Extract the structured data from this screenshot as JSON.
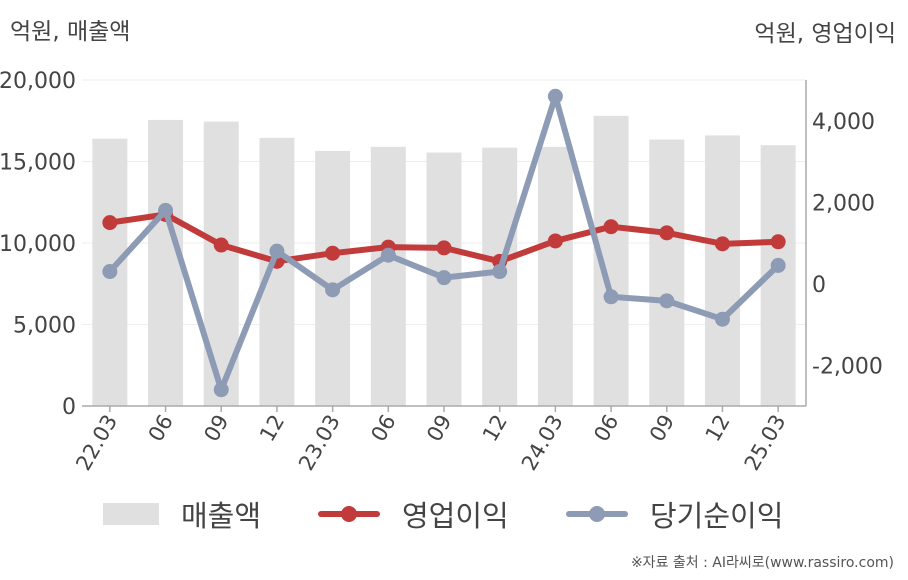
{
  "units": {
    "left": "억원, 매출액",
    "right": "억원, 영업이익"
  },
  "colors": {
    "revenue": "#e0e0e0",
    "operating_profit": "#c23b3b",
    "net_profit": "#8e9bb5",
    "axis": "#aaaaaa",
    "grid": "#eeeeee"
  },
  "chart_data": {
    "type": "bar",
    "categories": [
      "22.03",
      "06",
      "09",
      "12",
      "23.03",
      "06",
      "09",
      "12",
      "24.03",
      "06",
      "09",
      "12",
      "25.03"
    ],
    "left_axis": {
      "ylim": [
        0,
        20000
      ],
      "ticks": [
        "0",
        "5,000",
        "10,000",
        "15,000",
        "20,000"
      ],
      "tick_values": [
        0,
        5000,
        10000,
        15000,
        20000
      ]
    },
    "right_axis": {
      "ylim": [
        -3000,
        5000
      ],
      "ticks": [
        "-2,000",
        "0",
        "2,000",
        "4,000"
      ],
      "tick_values": [
        -2000,
        0,
        2000,
        4000
      ]
    },
    "grid": true,
    "legend_position": "bottom",
    "series": [
      {
        "name": "매출액",
        "type": "bar",
        "axis": "left",
        "values": [
          16400,
          17550,
          17450,
          16450,
          15650,
          15900,
          15550,
          15850,
          15900,
          17800,
          16350,
          16600,
          16000
        ]
      },
      {
        "name": "영업이익",
        "type": "line",
        "axis": "right",
        "values": [
          1500,
          1700,
          950,
          550,
          750,
          900,
          880,
          550,
          1050,
          1400,
          1250,
          980,
          1030
        ]
      },
      {
        "name": "당기순이익",
        "type": "line",
        "axis": "right",
        "values": [
          300,
          1800,
          -2600,
          800,
          -150,
          700,
          150,
          300,
          4600,
          -320,
          -420,
          -870,
          450
        ]
      }
    ]
  },
  "source": "※자료 출처 : AI라씨로(www.rassiro.com)"
}
